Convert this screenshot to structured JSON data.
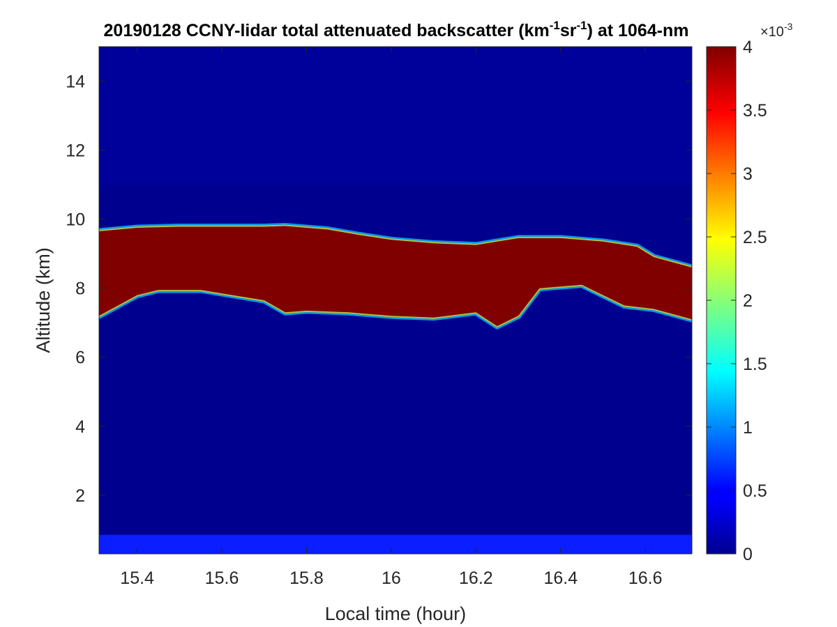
{
  "chart_data": {
    "type": "heatmap",
    "title": {
      "main": "20190128 CCNY-lidar total attenuated backscatter (km",
      "sup1": "-1",
      "mid": "sr",
      "sup2": "-1",
      "tail": ") at 1064-nm"
    },
    "xlabel": "Local time (hour)",
    "ylabel": "Altitude (km)",
    "xlim": [
      15.31,
      16.71
    ],
    "ylim": [
      0.3,
      15.0
    ],
    "x_ticks": [
      "15.4",
      "15.6",
      "15.8",
      "16",
      "16.2",
      "16.4",
      "16.6"
    ],
    "y_ticks": [
      "2",
      "4",
      "6",
      "8",
      "10",
      "12",
      "14"
    ],
    "colorbar": {
      "clim": [
        0,
        0.004
      ],
      "ticks": [
        "0",
        "0.5",
        "1",
        "1.5",
        "2",
        "2.5",
        "3",
        "3.5",
        "4"
      ],
      "exponent_label": "×10",
      "exponent_power": "-3",
      "colormap": "jet"
    },
    "colors": {
      "low": "#00008f",
      "background_noise": "#00009a",
      "surface_band": "#0a1eff",
      "saturated": "#800000"
    },
    "cloud_layer": {
      "description_value": "saturated backscatter",
      "value": 0.004,
      "top_km": [
        [
          15.31,
          9.65
        ],
        [
          15.4,
          9.75
        ],
        [
          15.5,
          9.78
        ],
        [
          15.6,
          9.78
        ],
        [
          15.7,
          9.78
        ],
        [
          15.75,
          9.8
        ],
        [
          15.85,
          9.7
        ],
        [
          15.92,
          9.55
        ],
        [
          16.0,
          9.4
        ],
        [
          16.1,
          9.3
        ],
        [
          16.2,
          9.25
        ],
        [
          16.3,
          9.45
        ],
        [
          16.4,
          9.45
        ],
        [
          16.5,
          9.35
        ],
        [
          16.58,
          9.2
        ],
        [
          16.62,
          8.9
        ],
        [
          16.71,
          8.6
        ]
      ],
      "base_km": [
        [
          15.31,
          7.2
        ],
        [
          15.4,
          7.8
        ],
        [
          15.45,
          7.95
        ],
        [
          15.55,
          7.95
        ],
        [
          15.6,
          7.85
        ],
        [
          15.7,
          7.65
        ],
        [
          15.75,
          7.3
        ],
        [
          15.8,
          7.35
        ],
        [
          15.9,
          7.3
        ],
        [
          16.0,
          7.2
        ],
        [
          16.1,
          7.15
        ],
        [
          16.2,
          7.3
        ],
        [
          16.25,
          6.9
        ],
        [
          16.3,
          7.2
        ],
        [
          16.35,
          8.0
        ],
        [
          16.45,
          8.1
        ],
        [
          16.55,
          7.5
        ],
        [
          16.62,
          7.4
        ],
        [
          16.71,
          7.1
        ]
      ]
    }
  }
}
